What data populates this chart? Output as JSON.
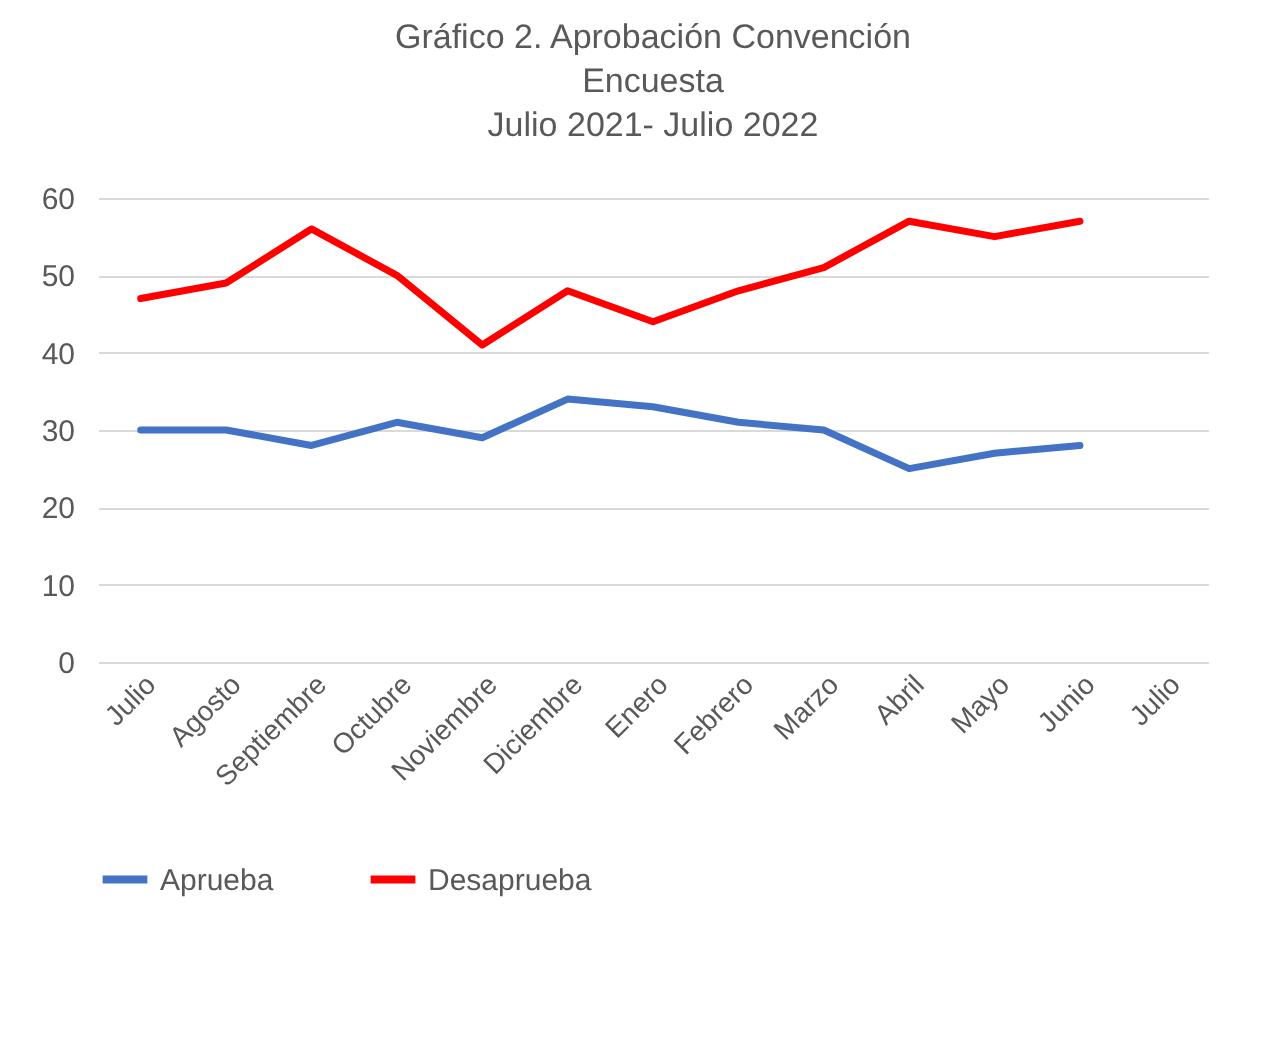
{
  "chart_data": {
    "type": "line",
    "title": "Gráfico 2. Aprobación Convención\nEncuesta\nJulio 2021- Julio 2022",
    "categories": [
      "Julio",
      "Agosto",
      "Septiembre",
      "Octubre",
      "Noviembre",
      "Diciembre",
      "Enero",
      "Febrero",
      "Marzo",
      "Abril",
      "Mayo",
      "Junio",
      "Julio"
    ],
    "series": [
      {
        "name": "Aprueba",
        "color": "#4472c4",
        "values": [
          30,
          30,
          28,
          31,
          29,
          34,
          33,
          31,
          30,
          25,
          27,
          28,
          null
        ]
      },
      {
        "name": "Desaprueba",
        "color": "#ff0000",
        "values": [
          47,
          49,
          56,
          50,
          41,
          48,
          44,
          48,
          51,
          57,
          55,
          57,
          null
        ]
      }
    ],
    "ylim": [
      0,
      60
    ],
    "yticks": [
      0,
      10,
      20,
      30,
      40,
      50,
      60
    ],
    "grid": "y",
    "legend": "bottom",
    "marker": "none",
    "line_style": "solid"
  }
}
